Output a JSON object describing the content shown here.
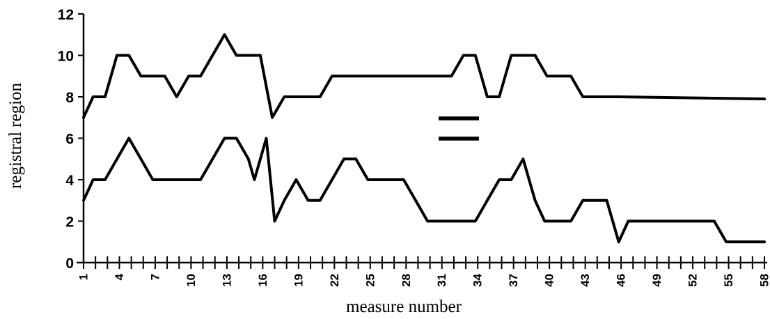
{
  "chart_data": {
    "type": "line",
    "xlabel": "measure number",
    "ylabel": "registral region",
    "xlim": [
      1,
      58
    ],
    "ylim": [
      0,
      12
    ],
    "x_ticks": [
      1,
      4,
      7,
      10,
      13,
      16,
      19,
      22,
      25,
      28,
      31,
      34,
      37,
      40,
      43,
      46,
      49,
      52,
      55,
      58
    ],
    "x_tick_labels": [
      "1",
      "4",
      "7",
      "10",
      "13",
      "16",
      "19",
      "22",
      "25",
      "28",
      "31",
      "34",
      "37",
      "40",
      "43",
      "46",
      "49",
      "52",
      "55",
      "58"
    ],
    "y_ticks": [
      0,
      2,
      4,
      6,
      8,
      10,
      12
    ],
    "y_tick_labels": [
      "0",
      "2",
      "4",
      "6",
      "8",
      "10",
      "12"
    ],
    "legend_placement": "center",
    "series": [
      {
        "points": [
          [
            1,
            7
          ],
          [
            1.8,
            8
          ],
          [
            2.8,
            8
          ],
          [
            3.8,
            10
          ],
          [
            4.8,
            10
          ],
          [
            5.8,
            9
          ],
          [
            6.8,
            9
          ],
          [
            7.8,
            9
          ],
          [
            8.8,
            8
          ],
          [
            9.8,
            9
          ],
          [
            10.8,
            9
          ],
          [
            11.8,
            10
          ],
          [
            12.8,
            11
          ],
          [
            13.8,
            10
          ],
          [
            14.8,
            10
          ],
          [
            15.8,
            10
          ],
          [
            16.8,
            7
          ],
          [
            17.8,
            8
          ],
          [
            18.8,
            8
          ],
          [
            19.8,
            8
          ],
          [
            20.8,
            8
          ],
          [
            21.8,
            9
          ],
          [
            22.8,
            9
          ],
          [
            23.8,
            9
          ],
          [
            24.8,
            9
          ],
          [
            25.8,
            9
          ],
          [
            26.8,
            9
          ],
          [
            27.8,
            9
          ],
          [
            28.8,
            9
          ],
          [
            29.8,
            9
          ],
          [
            30.8,
            9
          ],
          [
            31.8,
            9
          ],
          [
            32.8,
            10
          ],
          [
            33.8,
            10
          ],
          [
            34.8,
            8
          ],
          [
            35.8,
            8
          ],
          [
            36.8,
            10
          ],
          [
            37.8,
            10
          ],
          [
            38.8,
            10
          ],
          [
            39.8,
            9
          ],
          [
            40.8,
            9
          ],
          [
            41.8,
            9
          ],
          [
            42.8,
            8
          ],
          [
            43.8,
            8
          ],
          [
            44.8,
            8
          ],
          [
            45.8,
            8
          ],
          [
            58,
            7.9
          ]
        ]
      },
      {
        "points": [
          [
            1,
            3
          ],
          [
            1.8,
            4
          ],
          [
            2.8,
            4
          ],
          [
            3.8,
            5
          ],
          [
            4.8,
            6
          ],
          [
            5.8,
            5
          ],
          [
            6.8,
            4
          ],
          [
            7.8,
            4
          ],
          [
            8.8,
            4
          ],
          [
            9.8,
            4
          ],
          [
            10.8,
            4
          ],
          [
            11.8,
            5
          ],
          [
            12.8,
            6
          ],
          [
            13.8,
            6
          ],
          [
            14.8,
            5
          ],
          [
            15.3,
            4
          ],
          [
            16.3,
            6
          ],
          [
            17,
            2
          ],
          [
            17.8,
            3
          ],
          [
            18.8,
            4
          ],
          [
            19.8,
            3
          ],
          [
            20.8,
            3
          ],
          [
            21.8,
            4
          ],
          [
            22.8,
            5
          ],
          [
            23.8,
            5
          ],
          [
            24.8,
            4
          ],
          [
            25.8,
            4
          ],
          [
            26.8,
            4
          ],
          [
            27.8,
            4
          ],
          [
            28.8,
            3
          ],
          [
            29.8,
            2
          ],
          [
            30.8,
            2
          ],
          [
            31.8,
            2
          ],
          [
            32.8,
            2
          ],
          [
            33.8,
            2
          ],
          [
            34.8,
            3
          ],
          [
            35.8,
            4
          ],
          [
            36.8,
            4
          ],
          [
            37.8,
            5
          ],
          [
            38.8,
            3
          ],
          [
            39.6,
            2
          ],
          [
            40.6,
            2
          ],
          [
            41.8,
            2
          ],
          [
            42.8,
            3
          ],
          [
            43.8,
            3
          ],
          [
            44.8,
            3
          ],
          [
            45.8,
            1
          ],
          [
            46.6,
            2
          ],
          [
            47.6,
            2
          ],
          [
            48.8,
            2
          ],
          [
            49.8,
            2
          ],
          [
            50.8,
            2
          ],
          [
            51.8,
            2
          ],
          [
            52.8,
            2
          ],
          [
            53.8,
            2
          ],
          [
            54.8,
            1
          ],
          [
            55.8,
            1
          ],
          [
            56.8,
            1
          ],
          [
            58,
            1
          ]
        ]
      }
    ]
  }
}
